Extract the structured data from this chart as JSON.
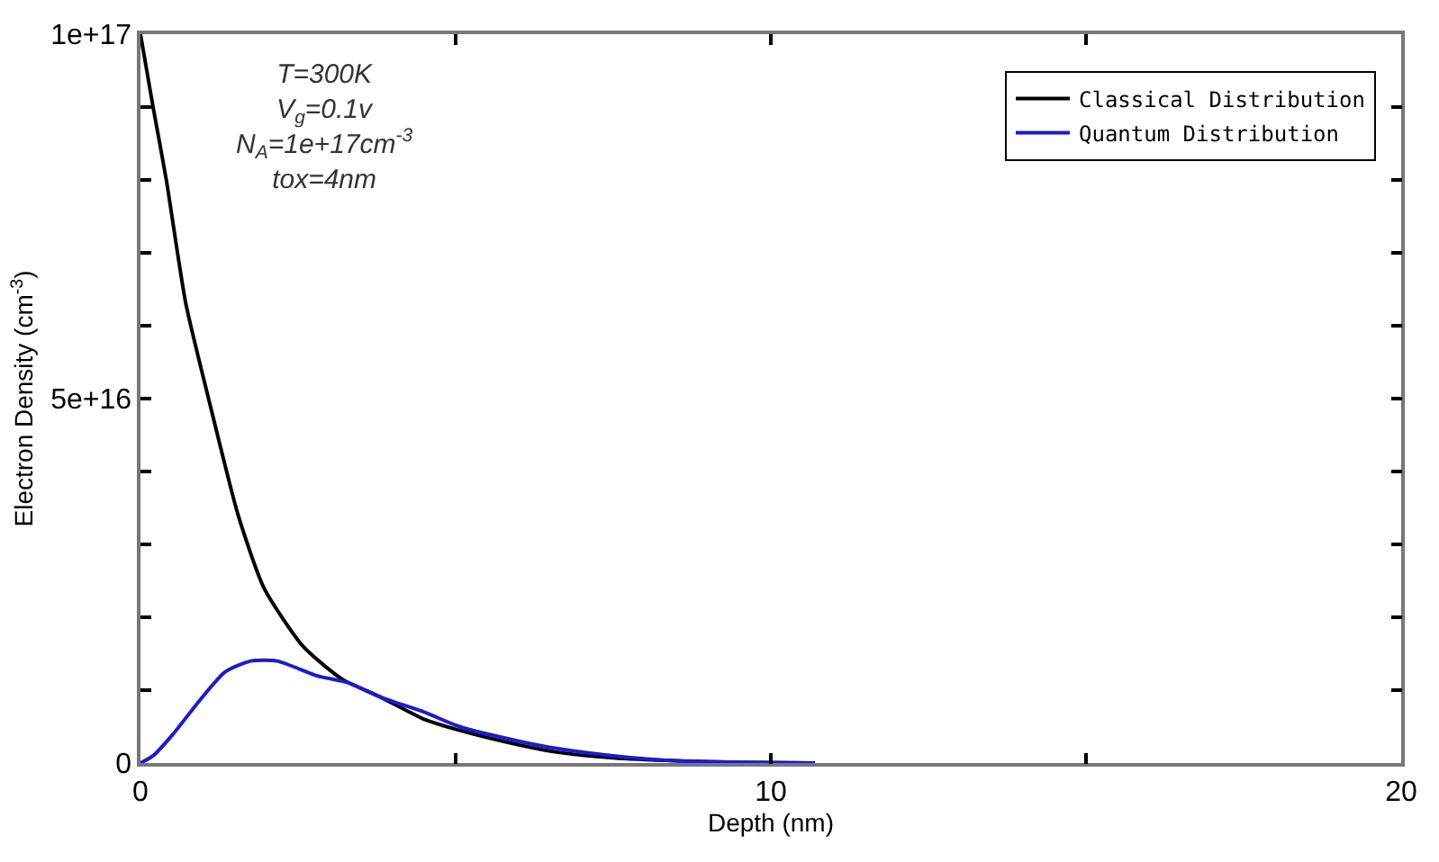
{
  "chart_data": {
    "type": "line",
    "xlabel": "Depth (nm)",
    "ylabel": "Electron Density (cm$^{-3}$)",
    "xlim": [
      0,
      20
    ],
    "xticks": [
      0,
      {
        "value": 5,
        "label": null
      },
      10,
      {
        "value": 15,
        "label": null
      },
      20
    ],
    "ylim": [
      0,
      1e+17
    ],
    "yticks": [
      0,
      {
        "value": 1e+16,
        "label": null
      },
      {
        "value": 2e+16,
        "label": null
      },
      {
        "value": 3e+16,
        "label": null
      },
      {
        "value": 4e+16,
        "label": null
      },
      {
        "value": 5e+16,
        "label": "5e+16"
      },
      {
        "value": 6e+16,
        "label": null
      },
      {
        "value": 7e+16,
        "label": null
      },
      {
        "value": 8e+16,
        "label": null
      },
      {
        "value": 9e+16,
        "label": null
      },
      {
        "value": 1e+17,
        "label": "1e+17"
      }
    ],
    "legend": "top right",
    "marker": "none",
    "line_style": "solid",
    "annotations": [
      "T=300K",
      "V$_{g}$=0.1v",
      "N$_{A}$=1e+17cm$^{-3}$",
      "tox=4nm"
    ],
    "series": [
      {
        "name": "Classical Distribution",
        "color": "#000000",
        "x": [
          0,
          0.2,
          0.41,
          0.72,
          1.08,
          1.55,
          1.96,
          2.58,
          3.2,
          3.82,
          4.5,
          5.06,
          6,
          6.6,
          7.5,
          8.5,
          9.5,
          10.7
        ],
        "values": [
          1e+17,
          9e+16,
          8e+16,
          6.3e+16,
          5e+16,
          3.4e+16,
          2.4e+16,
          1.6e+16,
          1.15e+16,
          9000000000000000.0,
          6000000000000000.0,
          4500000000000000.0,
          2500000000000000.0,
          1500000000000000.0,
          700000000000000.0,
          300000000000000.0,
          100000000000000.0,
          0
        ]
      },
      {
        "name": "Quantum Distribution",
        "color": "#1c1ccc",
        "x": [
          0,
          0.2,
          0.52,
          0.93,
          1.34,
          1.75,
          2.17,
          2.79,
          3.3,
          3.82,
          4.5,
          5.06,
          6,
          6.6,
          7.5,
          8.5,
          9.5,
          10.7
        ],
        "values": [
          0,
          1000000000000000.0,
          4000000000000000.0,
          8500000000000000.0,
          1.25e+16,
          1.4e+16,
          1.4e+16,
          1.2e+16,
          1.1e+16,
          9000000000000000.0,
          7000000000000000.0,
          5000000000000000.0,
          3000000000000000.0,
          2000000000000000.0,
          1000000000000000.0,
          300000000000000.0,
          100000000000000.0,
          0
        ]
      }
    ]
  }
}
